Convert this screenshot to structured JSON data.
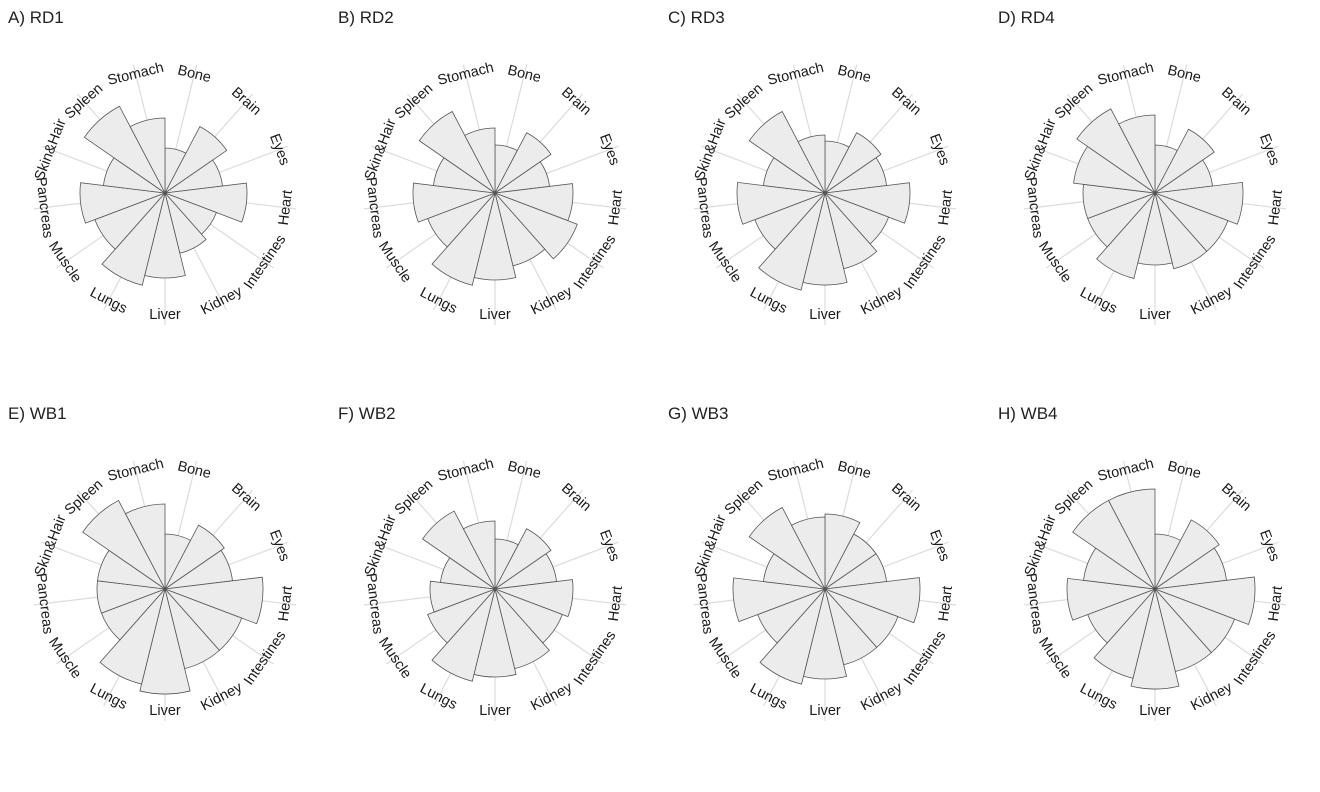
{
  "chart_data": [
    {
      "type": "polar-bar",
      "title": "A) RD1",
      "categories": [
        "Bone",
        "Brain",
        "Eyes",
        "Heart",
        "Intestines",
        "Kidney",
        "Liver",
        "Lungs",
        "Muscle",
        "Pancreas",
        "Skin&Hair",
        "Spleen",
        "Stomach"
      ],
      "values": [
        0.45,
        0.75,
        0.58,
        0.82,
        0.55,
        0.62,
        0.85,
        0.95,
        0.75,
        0.85,
        0.62,
        0.98,
        0.75
      ],
      "grid": true
    },
    {
      "type": "polar-bar",
      "title": "B) RD2",
      "categories": [
        "Bone",
        "Brain",
        "Eyes",
        "Heart",
        "Intestines",
        "Kidney",
        "Liver",
        "Lungs",
        "Muscle",
        "Pancreas",
        "Skin&Hair",
        "Spleen",
        "Stomach"
      ],
      "values": [
        0.48,
        0.68,
        0.55,
        0.78,
        0.88,
        0.75,
        0.87,
        0.95,
        0.72,
        0.82,
        0.62,
        0.92,
        0.65
      ],
      "grid": true
    },
    {
      "type": "polar-bar",
      "title": "C) RD3",
      "categories": [
        "Bone",
        "Brain",
        "Eyes",
        "Heart",
        "Intestines",
        "Kidney",
        "Liver",
        "Lungs",
        "Muscle",
        "Pancreas",
        "Skin&Hair",
        "Spleen",
        "Stomach"
      ],
      "values": [
        0.52,
        0.68,
        0.62,
        0.85,
        0.68,
        0.78,
        0.92,
        1.0,
        0.75,
        0.88,
        0.62,
        0.92,
        0.58
      ],
      "grid": true
    },
    {
      "type": "polar-bar",
      "title": "D) RD4",
      "categories": [
        "Bone",
        "Brain",
        "Eyes",
        "Heart",
        "Intestines",
        "Kidney",
        "Liver",
        "Lungs",
        "Muscle",
        "Pancreas",
        "Skin&Hair",
        "Spleen",
        "Stomach"
      ],
      "values": [
        0.48,
        0.72,
        0.58,
        0.88,
        0.78,
        0.78,
        0.72,
        0.88,
        0.72,
        0.72,
        0.82,
        0.95,
        0.78
      ],
      "grid": true
    },
    {
      "type": "polar-bar",
      "title": "E) WB1",
      "categories": [
        "Bone",
        "Brain",
        "Eyes",
        "Heart",
        "Intestines",
        "Kidney",
        "Liver",
        "Lungs",
        "Muscle",
        "Pancreas",
        "Skin&Hair",
        "Spleen",
        "Stomach"
      ],
      "values": [
        0.55,
        0.72,
        0.68,
        0.98,
        0.82,
        0.82,
        1.05,
        0.98,
        0.68,
        0.68,
        0.68,
        1.0,
        0.85
      ],
      "grid": true
    },
    {
      "type": "polar-bar",
      "title": "F) WB2",
      "categories": [
        "Bone",
        "Brain",
        "Eyes",
        "Heart",
        "Intestines",
        "Kidney",
        "Liver",
        "Lungs",
        "Muscle",
        "Pancreas",
        "Skin&Hair",
        "Spleen",
        "Stomach"
      ],
      "values": [
        0.5,
        0.68,
        0.62,
        0.78,
        0.72,
        0.82,
        0.88,
        0.95,
        0.72,
        0.65,
        0.55,
        0.88,
        0.68
      ],
      "grid": true
    },
    {
      "type": "polar-bar",
      "title": "G) WB3",
      "categories": [
        "Bone",
        "Brain",
        "Eyes",
        "Heart",
        "Intestines",
        "Kidney",
        "Liver",
        "Lungs",
        "Muscle",
        "Pancreas",
        "Skin&Hair",
        "Spleen",
        "Stomach"
      ],
      "values": [
        0.75,
        0.62,
        0.62,
        0.95,
        0.78,
        0.78,
        0.9,
        0.98,
        0.72,
        0.92,
        0.62,
        0.92,
        0.72
      ],
      "grid": true
    },
    {
      "type": "polar-bar",
      "title": "H) WB4",
      "categories": [
        "Bone",
        "Brain",
        "Eyes",
        "Heart",
        "Intestines",
        "Kidney",
        "Liver",
        "Lungs",
        "Muscle",
        "Pancreas",
        "Skin&Hair",
        "Spleen",
        "Stomach"
      ],
      "values": [
        0.55,
        0.78,
        0.72,
        1.0,
        0.85,
        0.85,
        1.0,
        0.92,
        0.72,
        0.88,
        0.72,
        1.0,
        1.0
      ],
      "grid": true
    }
  ]
}
